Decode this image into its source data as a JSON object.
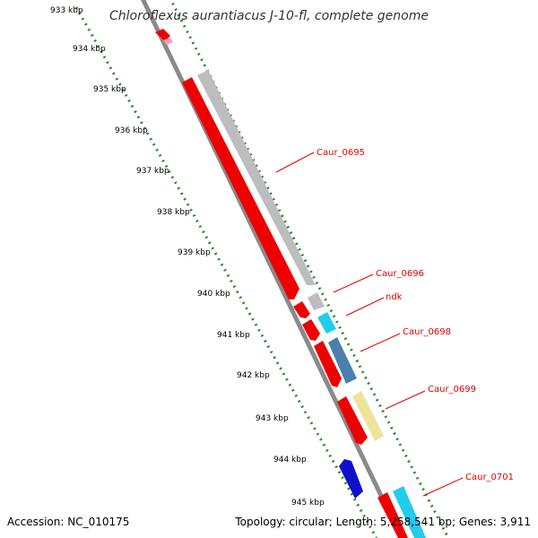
{
  "title": "Chloroflexus aurantiacus J-10-fl, complete genome",
  "accession": "Accession: NC_010175",
  "topology": "Topology: circular; Length: 5,258,541 bp; Genes: 3,911",
  "ticks": [
    "933 kbp",
    "934 kbp",
    "935 kbp",
    "936 kbp",
    "937 kbp",
    "938 kbp",
    "939 kbp",
    "940 kbp",
    "941 kbp",
    "942 kbp",
    "943 kbp",
    "944 kbp",
    "945 kbp"
  ],
  "gene_labels": [
    "Caur_0695",
    "Caur_0696",
    "ndk",
    "Caur_0698",
    "Caur_0699",
    "Caur_0701"
  ],
  "colors": {
    "red": "#ee0000",
    "grey": "#bdbdbd",
    "cyan": "#22ccee",
    "steelblue": "#4a7fb0",
    "khaki": "#eee39a",
    "blue": "#1010cc",
    "pink": "#f0a0c0",
    "backbone": "#8a8a8a",
    "dots": "#2a8a2a"
  }
}
